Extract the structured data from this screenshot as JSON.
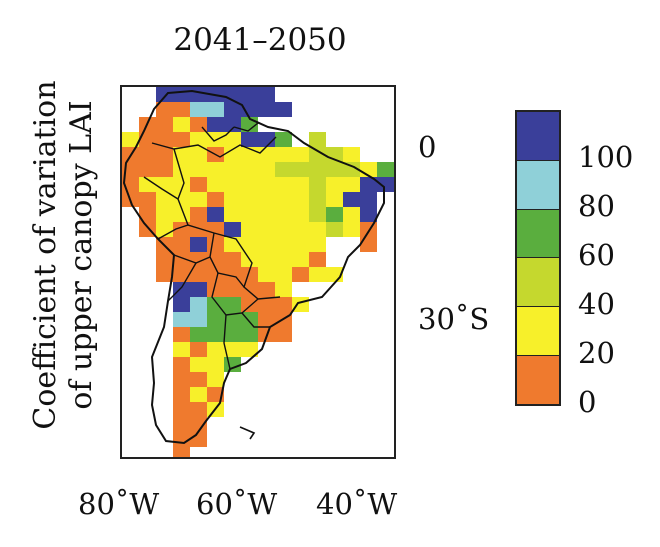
{
  "title": "2041–2050",
  "ylabel": {
    "line1": "Coefficient of variation",
    "line2": "of upper canopy LAI"
  },
  "x_ticks": [
    "80˚W",
    "60˚W",
    "40˚W"
  ],
  "y_ticks": [
    "0",
    "30˚S"
  ],
  "colorbar": {
    "labels": [
      "100",
      "80",
      "60",
      "40",
      "20",
      "0"
    ],
    "colors": [
      "#3a3f9a",
      "#8fd0d8",
      "#5aae3e",
      "#c5d82e",
      "#f7f02a",
      "#ef7a2e"
    ]
  },
  "legend_items": [
    "0-20",
    "20-40",
    "40-60",
    "60-80",
    "80-100",
    "100+"
  ],
  "map_region": "South America"
}
